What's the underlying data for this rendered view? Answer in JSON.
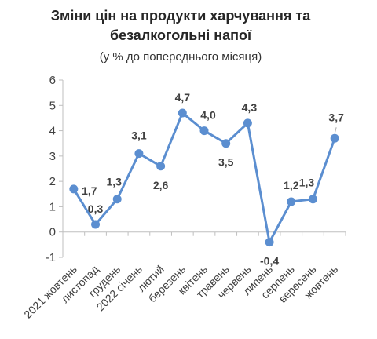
{
  "chart_data": {
    "type": "line",
    "title_line1": "Зміни цін на продукти харчування та",
    "title_line2": "безалкогольні напої",
    "subtitle": "(у % до попереднього місяця)",
    "categories": [
      "2021 жовтень",
      "листопад",
      "грудень",
      "2022 січень",
      "лютий",
      "березень",
      "квітень",
      "травень",
      "червень",
      "липень",
      "серпень",
      "вересень",
      "жовтень"
    ],
    "series": [
      {
        "values": [
          1.7,
          0.3,
          1.3,
          3.1,
          2.6,
          4.7,
          4.0,
          3.5,
          4.3,
          -0.4,
          1.2,
          1.3,
          3.7
        ],
        "labels": [
          "1,7",
          "0,3",
          "1,3",
          "3,1",
          "2,6",
          "4,7",
          "4,0",
          "3,5",
          "4,3",
          "-0,4",
          "1,2",
          "1,3",
          "3,7"
        ],
        "color": "#5b8ed0"
      }
    ],
    "yticks": [
      "-1",
      "0",
      "1",
      "2",
      "3",
      "4",
      "5",
      "6"
    ],
    "ylim": [
      -1,
      6
    ],
    "grid": false,
    "axis_color": "#bfbfbf"
  }
}
